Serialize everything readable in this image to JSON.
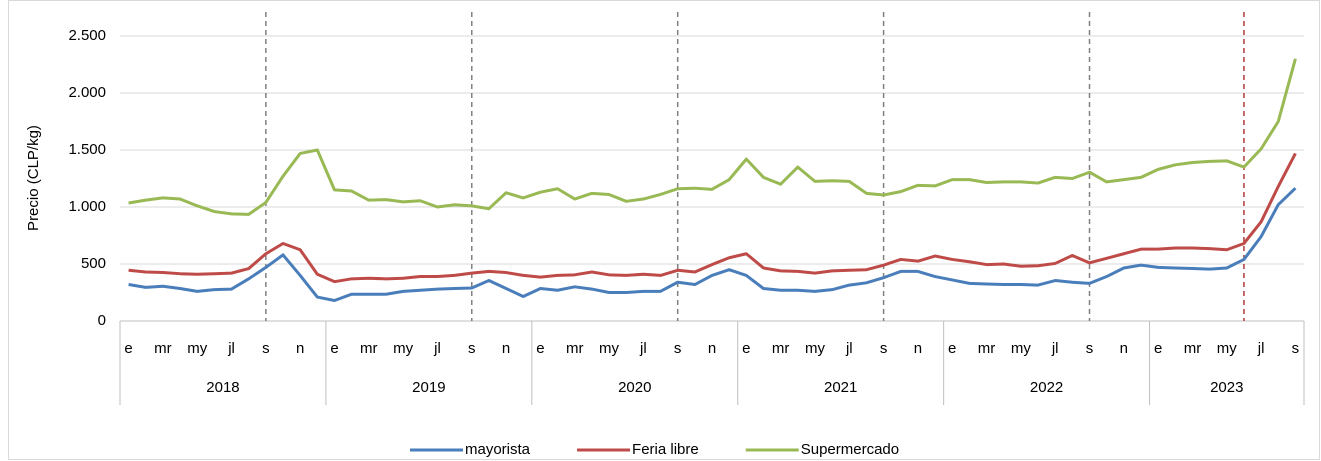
{
  "chart_data": {
    "type": "line",
    "y_label": "Precio (CLP/kg)",
    "categories": [
      "e",
      null,
      "mr",
      null,
      "my",
      null,
      "jl",
      null,
      "s",
      null,
      "n",
      null,
      "e",
      null,
      "mr",
      null,
      "my",
      null,
      "jl",
      null,
      "s",
      null,
      "n",
      null,
      "e",
      null,
      "mr",
      null,
      "my",
      null,
      "jl",
      null,
      "s",
      null,
      "n",
      null,
      "e",
      null,
      "mr",
      null,
      "my",
      null,
      "jl",
      null,
      "s",
      null,
      "n",
      null,
      "e",
      null,
      "mr",
      null,
      "my",
      null,
      "jl",
      null,
      "s",
      null,
      "n",
      null,
      "e",
      null,
      "mr",
      null,
      "my",
      null,
      "jl",
      null,
      "s"
    ],
    "year_groups": [
      "2018",
      "2019",
      "2020",
      "2021",
      "2022",
      "2023"
    ],
    "series": [
      {
        "name": "mayorista",
        "color": "#4a7ebb",
        "values": [
          320,
          295,
          305,
          285,
          260,
          275,
          280,
          370,
          470,
          580,
          400,
          210,
          180,
          235,
          235,
          235,
          260,
          270,
          280,
          285,
          290,
          355,
          285,
          215,
          285,
          270,
          300,
          280,
          250,
          250,
          260,
          260,
          340,
          320,
          400,
          450,
          400,
          285,
          270,
          270,
          260,
          275,
          315,
          335,
          380,
          435,
          435,
          390,
          360,
          330,
          325,
          320,
          320,
          315,
          355,
          340,
          330,
          390,
          465,
          490,
          470,
          465,
          460,
          455,
          465,
          540,
          740,
          1020,
          1165
        ]
      },
      {
        "name": "Feria libre",
        "color": "#be4b48",
        "values": [
          445,
          430,
          425,
          415,
          410,
          415,
          420,
          460,
          590,
          680,
          625,
          410,
          345,
          370,
          375,
          370,
          375,
          390,
          390,
          400,
          420,
          435,
          425,
          400,
          385,
          400,
          405,
          430,
          405,
          400,
          410,
          400,
          445,
          430,
          495,
          555,
          590,
          465,
          440,
          435,
          420,
          440,
          445,
          450,
          490,
          540,
          525,
          570,
          540,
          520,
          495,
          500,
          480,
          485,
          505,
          575,
          510,
          550,
          590,
          630,
          630,
          640,
          640,
          635,
          625,
          680,
          870,
          1180,
          1470
        ]
      },
      {
        "name": "Supermercado",
        "color": "#98b954",
        "values": [
          1035,
          1060,
          1080,
          1070,
          1010,
          960,
          940,
          935,
          1040,
          1270,
          1470,
          1500,
          1150,
          1140,
          1060,
          1065,
          1045,
          1055,
          1000,
          1020,
          1010,
          985,
          1125,
          1080,
          1130,
          1160,
          1070,
          1120,
          1110,
          1050,
          1070,
          1110,
          1160,
          1165,
          1155,
          1240,
          1420,
          1260,
          1200,
          1350,
          1225,
          1230,
          1225,
          1120,
          1105,
          1135,
          1190,
          1185,
          1240,
          1240,
          1215,
          1220,
          1220,
          1210,
          1260,
          1250,
          1305,
          1220,
          1240,
          1260,
          1330,
          1370,
          1390,
          1400,
          1405,
          1350,
          1510,
          1750,
          2300
        ]
      }
    ],
    "vlines": [
      {
        "at": 8,
        "color": "#808080"
      },
      {
        "at": 20,
        "color": "#808080"
      },
      {
        "at": 32,
        "color": "#808080"
      },
      {
        "at": 44,
        "color": "#808080"
      },
      {
        "at": 56,
        "color": "#808080"
      },
      {
        "at": 65,
        "color": "#b03a3a"
      }
    ],
    "ylim": [
      0,
      2500
    ],
    "yticks": [
      0,
      500,
      {
        "value": 1000,
        "label": "1.000"
      },
      {
        "value": 1500,
        "label": "1.500"
      },
      {
        "value": 2000,
        "label": "2.000"
      },
      {
        "value": 2500,
        "label": "2.500"
      }
    ],
    "grid": true,
    "legend": "bottom"
  }
}
